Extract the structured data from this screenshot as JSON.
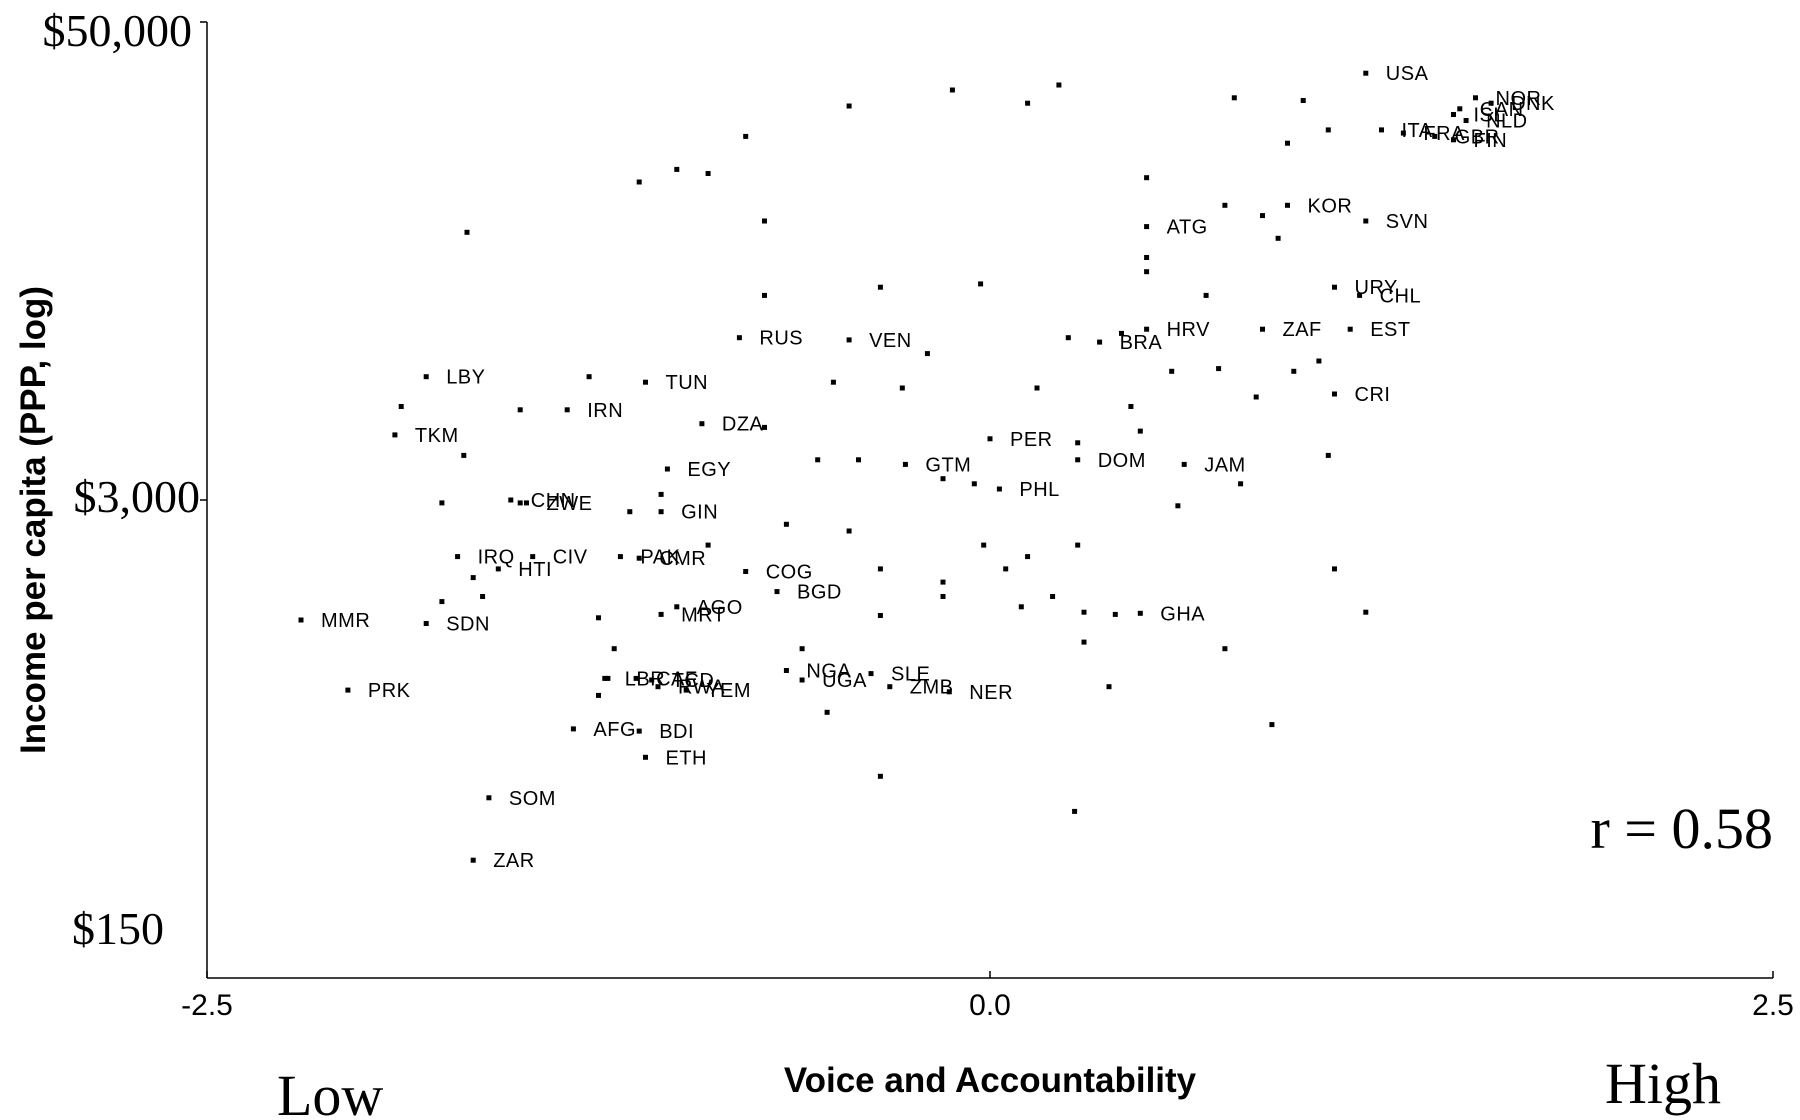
{
  "chart_data": {
    "type": "scatter",
    "title": "",
    "xlabel": "Voice and Accountability",
    "ylabel": "Income per capita (PPP, log)",
    "x_ticks": [
      "-2.5",
      "0.0",
      "2.5"
    ],
    "y_ticks": [
      {
        "value": 50000,
        "label": "$50,000"
      },
      {
        "value": 3000,
        "label": "$3,000"
      },
      {
        "value": 150,
        "label": "$150"
      }
    ],
    "xlim": [
      -2.5,
      2.5
    ],
    "ylim": [
      80,
      50000
    ],
    "y_scale": "log",
    "grid": false,
    "x_low_label": "Low",
    "x_high_label": "High",
    "annotation": "r = 0.58",
    "points": [
      {
        "label": "USA",
        "x": 1.2,
        "y": 37000
      },
      {
        "label": "NOR",
        "x": 1.55,
        "y": 32000
      },
      {
        "label": "CAN",
        "x": 1.5,
        "y": 30000
      },
      {
        "label": "DNK",
        "x": 1.6,
        "y": 31000
      },
      {
        "label": "ISL",
        "x": 1.48,
        "y": 29000
      },
      {
        "label": "NLD",
        "x": 1.52,
        "y": 28000
      },
      {
        "label": "ITA",
        "x": 1.25,
        "y": 26500
      },
      {
        "label": "FRA",
        "x": 1.32,
        "y": 26000
      },
      {
        "label": "GBR",
        "x": 1.42,
        "y": 25500
      },
      {
        "label": "FIN",
        "x": 1.48,
        "y": 25000
      },
      {
        "label": "KOR",
        "x": 0.95,
        "y": 17000
      },
      {
        "label": "SVN",
        "x": 1.2,
        "y": 15500
      },
      {
        "label": "ATG",
        "x": 0.5,
        "y": 15000
      },
      {
        "label": "URY",
        "x": 1.1,
        "y": 10500
      },
      {
        "label": "CHL",
        "x": 1.18,
        "y": 10000
      },
      {
        "label": "HRV",
        "x": 0.5,
        "y": 8200
      },
      {
        "label": "BRA",
        "x": 0.35,
        "y": 7600
      },
      {
        "label": "ZAF",
        "x": 0.87,
        "y": 8200
      },
      {
        "label": "EST",
        "x": 1.15,
        "y": 8200
      },
      {
        "label": "CRI",
        "x": 1.1,
        "y": 5600
      },
      {
        "label": "RUS",
        "x": -0.8,
        "y": 7800
      },
      {
        "label": "VEN",
        "x": -0.45,
        "y": 7700
      },
      {
        "label": "LBY",
        "x": -1.8,
        "y": 6200
      },
      {
        "label": "TUN",
        "x": -1.1,
        "y": 6000
      },
      {
        "label": "IRN",
        "x": -1.35,
        "y": 5100
      },
      {
        "label": "TKM",
        "x": -1.9,
        "y": 4400
      },
      {
        "label": "DZA",
        "x": -0.92,
        "y": 4700
      },
      {
        "label": "PER",
        "x": 0.0,
        "y": 4300
      },
      {
        "label": "DOM",
        "x": 0.28,
        "y": 3800
      },
      {
        "label": "JAM",
        "x": 0.62,
        "y": 3700
      },
      {
        "label": "EGY",
        "x": -1.03,
        "y": 3600
      },
      {
        "label": "GTM",
        "x": -0.27,
        "y": 3700
      },
      {
        "label": "PHL",
        "x": 0.03,
        "y": 3200
      },
      {
        "label": "CHN",
        "x": -1.53,
        "y": 3000
      },
      {
        "label": "ZWE",
        "x": -1.48,
        "y": 2950
      },
      {
        "label": "GIN",
        "x": -1.05,
        "y": 2800
      },
      {
        "label": "IRQ",
        "x": -1.7,
        "y": 2150
      },
      {
        "label": "CIV",
        "x": -1.46,
        "y": 2150
      },
      {
        "label": "PAK",
        "x": -1.18,
        "y": 2150
      },
      {
        "label": "CMR",
        "x": -1.12,
        "y": 2130
      },
      {
        "label": "HTI",
        "x": -1.57,
        "y": 2000
      },
      {
        "label": "COG",
        "x": -0.78,
        "y": 1970
      },
      {
        "label": "BGD",
        "x": -0.68,
        "y": 1750
      },
      {
        "label": "AGO",
        "x": -1.0,
        "y": 1600
      },
      {
        "label": "MRT",
        "x": -1.05,
        "y": 1530
      },
      {
        "label": "GHA",
        "x": 0.48,
        "y": 1540
      },
      {
        "label": "MMR",
        "x": -2.2,
        "y": 1480
      },
      {
        "label": "SDN",
        "x": -1.8,
        "y": 1450
      },
      {
        "label": "NGA",
        "x": -0.65,
        "y": 1100
      },
      {
        "label": "SLE",
        "x": -0.38,
        "y": 1080
      },
      {
        "label": "LBR",
        "x": -1.23,
        "y": 1050
      },
      {
        "label": "CAF",
        "x": -1.13,
        "y": 1050
      },
      {
        "label": "TCD",
        "x": -1.08,
        "y": 1040
      },
      {
        "label": "UGA",
        "x": -0.6,
        "y": 1040
      },
      {
        "label": "ZMB",
        "x": -0.32,
        "y": 1000
      },
      {
        "label": "RWA",
        "x": -1.06,
        "y": 1000
      },
      {
        "label": "YEM",
        "x": -0.97,
        "y": 980
      },
      {
        "label": "NER",
        "x": -0.13,
        "y": 970
      },
      {
        "label": "PRK",
        "x": -2.05,
        "y": 980
      },
      {
        "label": "AFG",
        "x": -1.33,
        "y": 780
      },
      {
        "label": "BDI",
        "x": -1.12,
        "y": 770
      },
      {
        "label": "ETH",
        "x": -1.1,
        "y": 660
      },
      {
        "label": "SOM",
        "x": -1.6,
        "y": 520
      },
      {
        "label": "ZAR",
        "x": -1.65,
        "y": 360
      },
      {
        "x": -1.67,
        "y": 14500
      },
      {
        "x": -1.12,
        "y": 19500
      },
      {
        "x": -1.0,
        "y": 21000
      },
      {
        "x": -0.9,
        "y": 20500
      },
      {
        "x": -0.78,
        "y": 25500
      },
      {
        "x": -0.45,
        "y": 30500
      },
      {
        "x": -0.12,
        "y": 33500
      },
      {
        "x": 0.12,
        "y": 31000
      },
      {
        "x": 0.22,
        "y": 34500
      },
      {
        "x": 0.78,
        "y": 32000
      },
      {
        "x": 1.0,
        "y": 31500
      },
      {
        "x": 0.95,
        "y": 24500
      },
      {
        "x": 1.08,
        "y": 26500
      },
      {
        "x": 0.5,
        "y": 20000
      },
      {
        "x": 0.75,
        "y": 17000
      },
      {
        "x": 0.87,
        "y": 16000
      },
      {
        "x": 0.92,
        "y": 14000
      },
      {
        "x": 0.5,
        "y": 12500
      },
      {
        "x": 0.5,
        "y": 11500
      },
      {
        "x": 0.69,
        "y": 10000
      },
      {
        "x": -0.72,
        "y": 15500
      },
      {
        "x": -0.72,
        "y": 10000
      },
      {
        "x": -0.35,
        "y": 10500
      },
      {
        "x": -0.03,
        "y": 10700
      },
      {
        "x": 0.25,
        "y": 7800
      },
      {
        "x": 0.42,
        "y": 8000
      },
      {
        "x": 0.58,
        "y": 6400
      },
      {
        "x": 0.73,
        "y": 6500
      },
      {
        "x": 0.85,
        "y": 5500
      },
      {
        "x": 0.97,
        "y": 6400
      },
      {
        "x": 1.05,
        "y": 6800
      },
      {
        "x": 1.08,
        "y": 3900
      },
      {
        "x": 1.1,
        "y": 2000
      },
      {
        "x": 1.2,
        "y": 1550
      },
      {
        "x": -0.2,
        "y": 7100
      },
      {
        "x": -0.5,
        "y": 6000
      },
      {
        "x": -0.28,
        "y": 5800
      },
      {
        "x": 0.15,
        "y": 5800
      },
      {
        "x": -0.72,
        "y": 4600
      },
      {
        "x": -0.55,
        "y": 3800
      },
      {
        "x": -0.42,
        "y": 3800
      },
      {
        "x": 0.28,
        "y": 4200
      },
      {
        "x": 0.45,
        "y": 5200
      },
      {
        "x": 0.48,
        "y": 4500
      },
      {
        "x": -0.15,
        "y": 3400
      },
      {
        "x": -0.05,
        "y": 3300
      },
      {
        "x": 0.6,
        "y": 2900
      },
      {
        "x": 0.8,
        "y": 3300
      },
      {
        "x": -0.65,
        "y": 2600
      },
      {
        "x": -0.45,
        "y": 2500
      },
      {
        "x": -0.9,
        "y": 2300
      },
      {
        "x": -0.02,
        "y": 2300
      },
      {
        "x": 0.12,
        "y": 2150
      },
      {
        "x": 0.28,
        "y": 2300
      },
      {
        "x": 0.05,
        "y": 2000
      },
      {
        "x": -0.35,
        "y": 2000
      },
      {
        "x": -0.15,
        "y": 1850
      },
      {
        "x": -0.15,
        "y": 1700
      },
      {
        "x": 0.1,
        "y": 1600
      },
      {
        "x": 0.2,
        "y": 1700
      },
      {
        "x": 0.3,
        "y": 1550
      },
      {
        "x": 0.4,
        "y": 1530
      },
      {
        "x": 0.3,
        "y": 1300
      },
      {
        "x": 0.75,
        "y": 1250
      },
      {
        "x": -0.35,
        "y": 1520
      },
      {
        "x": -0.6,
        "y": 1250
      },
      {
        "x": 0.38,
        "y": 1000
      },
      {
        "x": -0.52,
        "y": 860
      },
      {
        "x": 0.9,
        "y": 800
      },
      {
        "x": -0.35,
        "y": 590
      },
      {
        "x": 0.27,
        "y": 480
      },
      {
        "x": -1.75,
        "y": 2950
      },
      {
        "x": -1.75,
        "y": 1650
      },
      {
        "x": -1.62,
        "y": 1700
      },
      {
        "x": -1.65,
        "y": 1900
      },
      {
        "x": -1.25,
        "y": 1500
      },
      {
        "x": -1.2,
        "y": 1250
      },
      {
        "x": -1.22,
        "y": 1050
      },
      {
        "x": -1.25,
        "y": 950
      },
      {
        "x": -1.28,
        "y": 6200
      },
      {
        "x": -1.5,
        "y": 5100
      },
      {
        "x": -1.05,
        "y": 3100
      },
      {
        "x": -1.68,
        "y": 3900
      },
      {
        "x": -1.88,
        "y": 5200
      },
      {
        "x": -1.15,
        "y": 2800
      },
      {
        "x": -1.5,
        "y": 2950
      }
    ]
  }
}
